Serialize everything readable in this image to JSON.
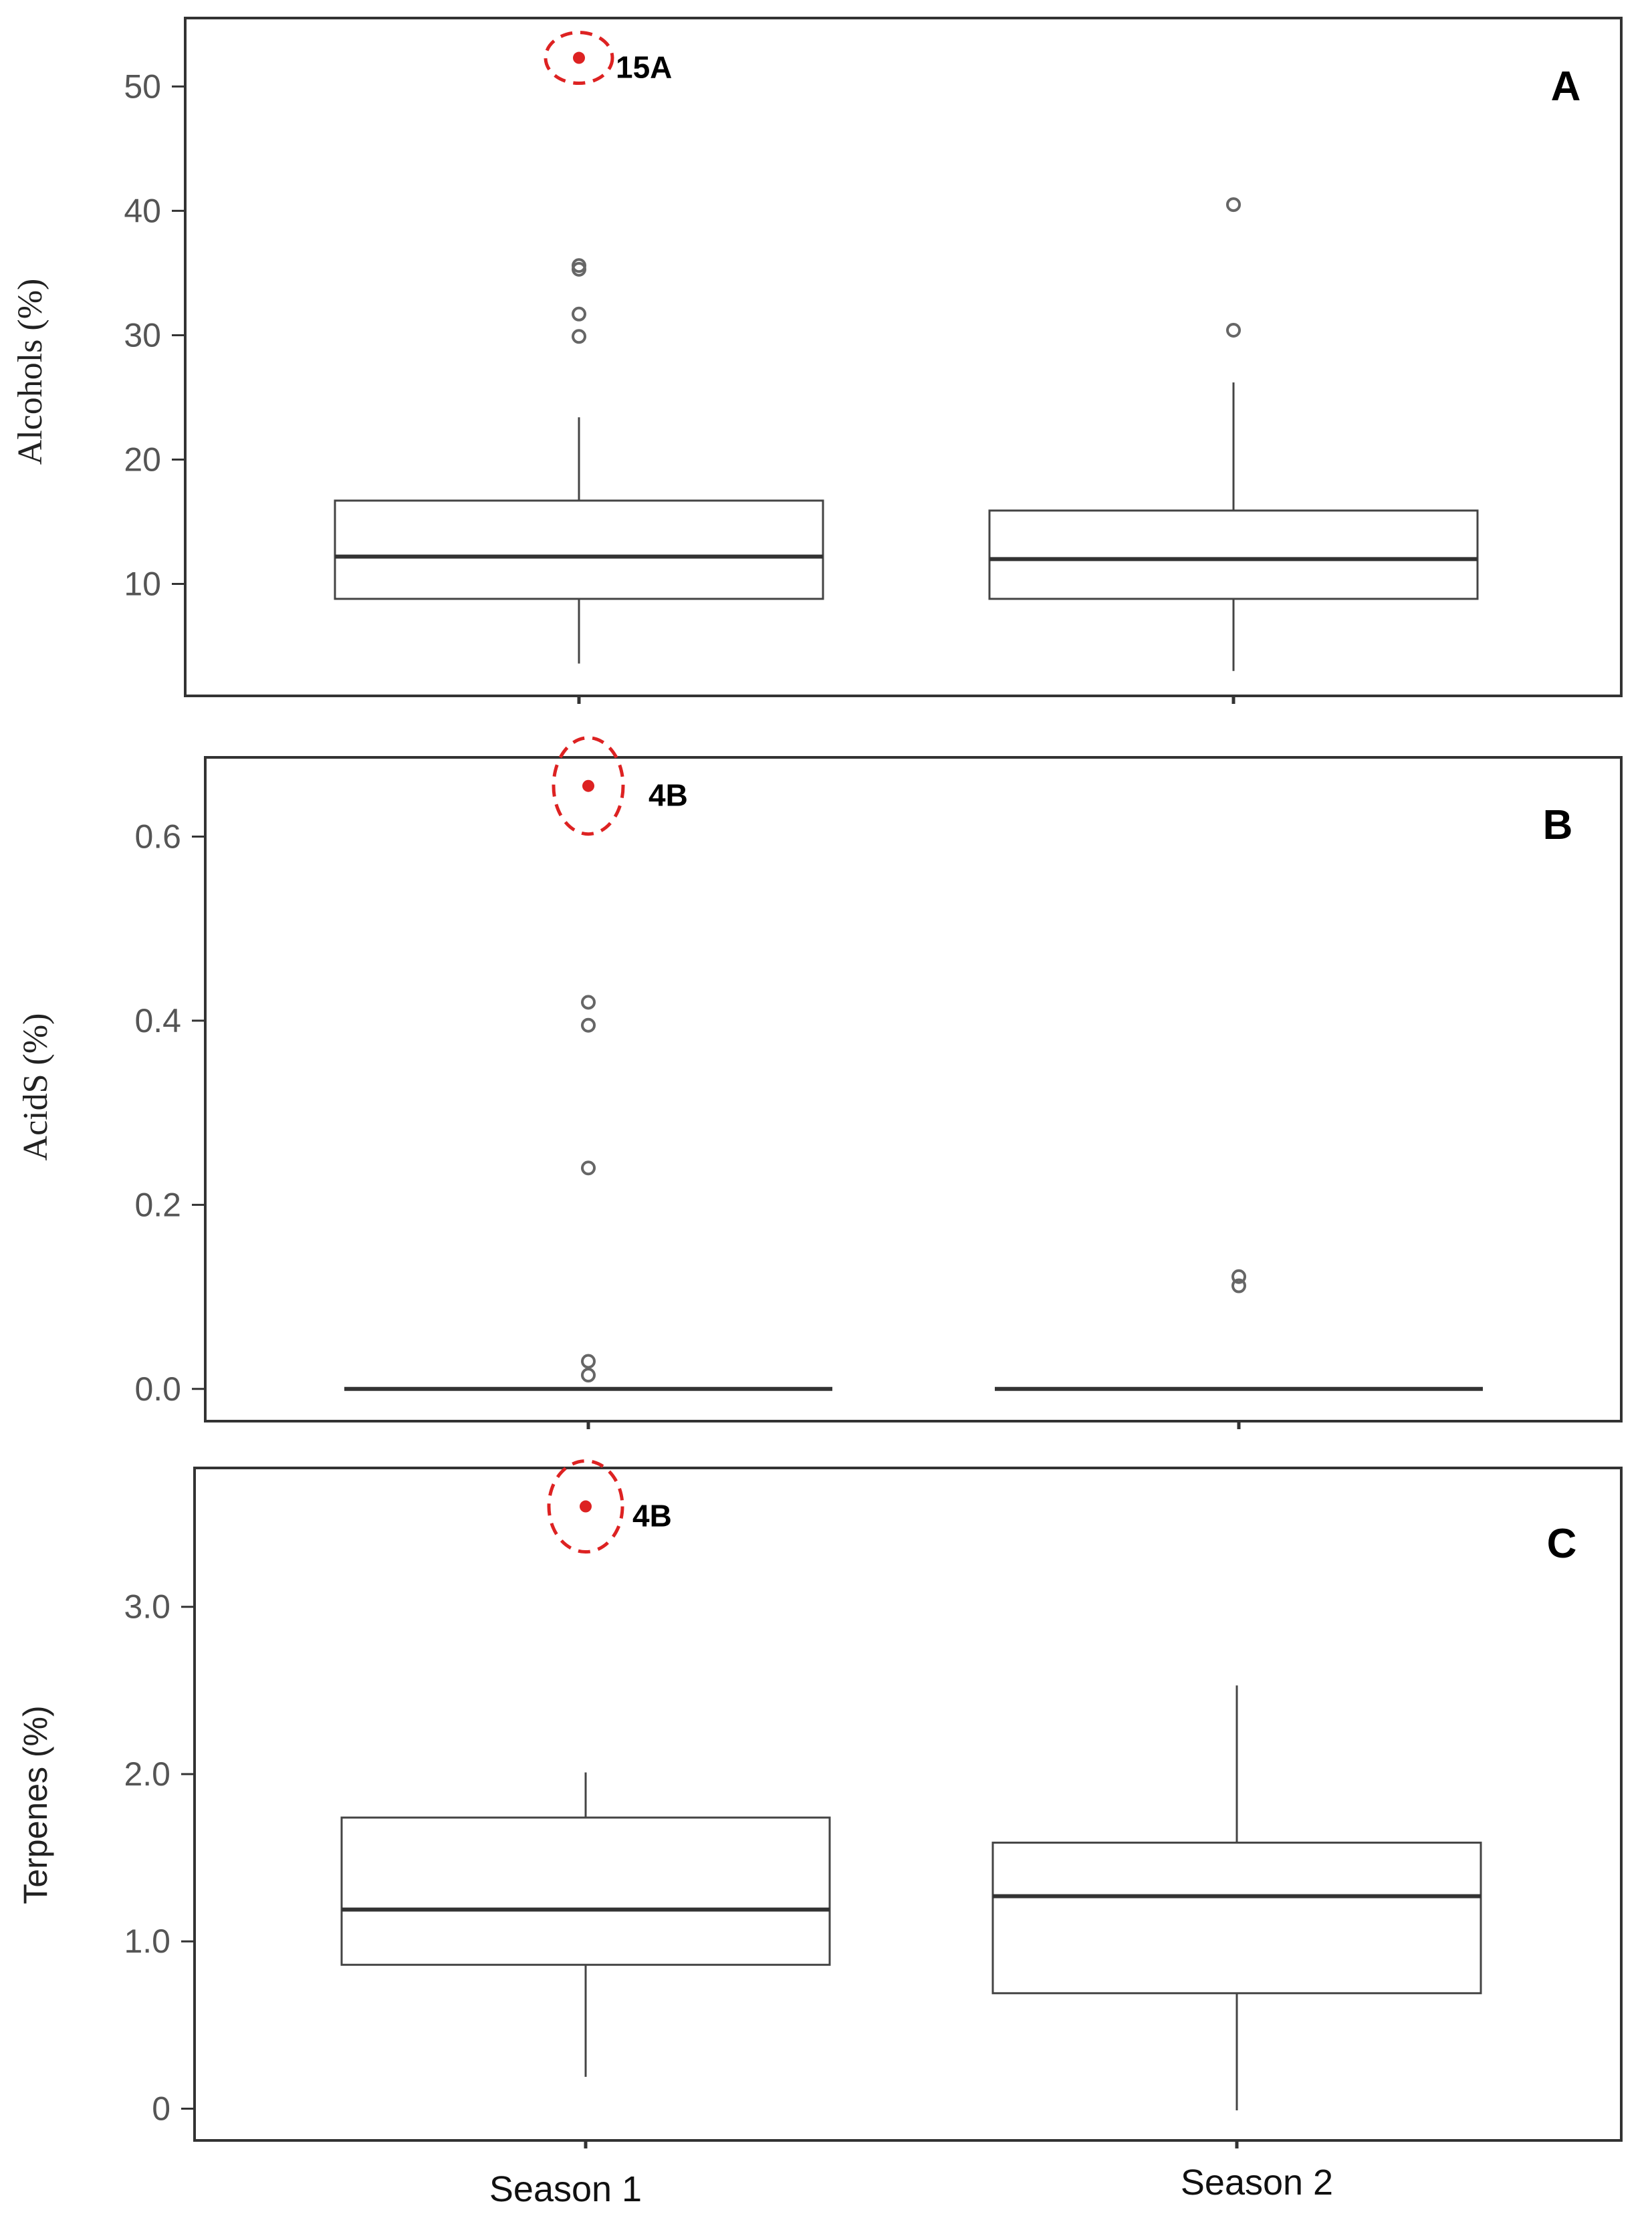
{
  "chart_data": [
    {
      "type": "box",
      "panel": "A",
      "ylabel": "Alcohols (%)",
      "categories": [
        "Season 1",
        "Season 2"
      ],
      "yticks": [
        {
          "value": 10,
          "label": "10"
        },
        {
          "value": 20,
          "label": "20"
        },
        {
          "value": 30,
          "label": "30"
        },
        {
          "value": 40,
          "label": "40"
        },
        {
          "value": 50,
          "label": "50"
        }
      ],
      "ylim": [
        1,
        55.5
      ],
      "boxes": [
        {
          "category": "Season 1",
          "whisker_low": 3.6,
          "q1": 8.8,
          "median": 12.2,
          "q3": 16.7,
          "whisker_high": 23.4,
          "outliers": [
            29.9,
            31.7,
            35.3,
            35.6
          ]
        },
        {
          "category": "Season 2",
          "whisker_low": 3.0,
          "q1": 8.8,
          "median": 12.0,
          "q3": 15.9,
          "whisker_high": 26.2,
          "outliers": [
            30.4,
            40.5
          ]
        }
      ],
      "highlight": {
        "category": "Season 1",
        "value": 52.3,
        "label": "15A",
        "color": "#dd2222"
      }
    },
    {
      "type": "box",
      "panel": "B",
      "ylabel": "AcidS (%)",
      "categories": [
        "Season 1",
        "Season 2"
      ],
      "yticks": [
        {
          "value": 0.0,
          "label": "0.0"
        },
        {
          "value": 0.2,
          "label": "0.2"
        },
        {
          "value": 0.4,
          "label": "0.4"
        },
        {
          "value": 0.6,
          "label": "0.6"
        }
      ],
      "ylim": [
        -0.035,
        0.686
      ],
      "boxes": [
        {
          "category": "Season 1",
          "whisker_low": 0.0,
          "q1": 0.0,
          "median": 0.0,
          "q3": 0.0,
          "whisker_high": 0.0,
          "outliers": [
            0.015,
            0.03,
            0.24,
            0.395,
            0.42
          ]
        },
        {
          "category": "Season 2",
          "whisker_low": 0.0,
          "q1": 0.0,
          "median": 0.0,
          "q3": 0.0,
          "whisker_high": 0.0,
          "outliers": [
            0.112,
            0.122
          ]
        }
      ],
      "highlight": {
        "category": "Season 1",
        "value": 0.655,
        "label": "4B",
        "color": "#dd2222"
      }
    },
    {
      "type": "box",
      "panel": "C",
      "ylabel": "Terpenes (%)",
      "categories": [
        "Season 1",
        "Season 2"
      ],
      "yticks": [
        {
          "value": 0,
          "label": "0"
        },
        {
          "value": 1.0,
          "label": "1.0"
        },
        {
          "value": 2.0,
          "label": "2.0"
        },
        {
          "value": 3.0,
          "label": "3.0"
        }
      ],
      "ylim": [
        -0.19,
        3.83
      ],
      "boxes": [
        {
          "category": "Season 1",
          "whisker_low": 0.19,
          "q1": 0.86,
          "median": 1.19,
          "q3": 1.74,
          "whisker_high": 2.01,
          "outliers": []
        },
        {
          "category": "Season 2",
          "whisker_low": -0.01,
          "q1": 0.69,
          "median": 1.27,
          "q3": 1.59,
          "whisker_high": 2.53,
          "outliers": []
        }
      ],
      "highlight": {
        "category": "Season 1",
        "value": 3.6,
        "label": "4B",
        "color": "#dd2222"
      }
    }
  ],
  "colors": {
    "box": "#444444",
    "outlier": "#666666",
    "highlight": "#dd2222",
    "frame": "#333333"
  }
}
